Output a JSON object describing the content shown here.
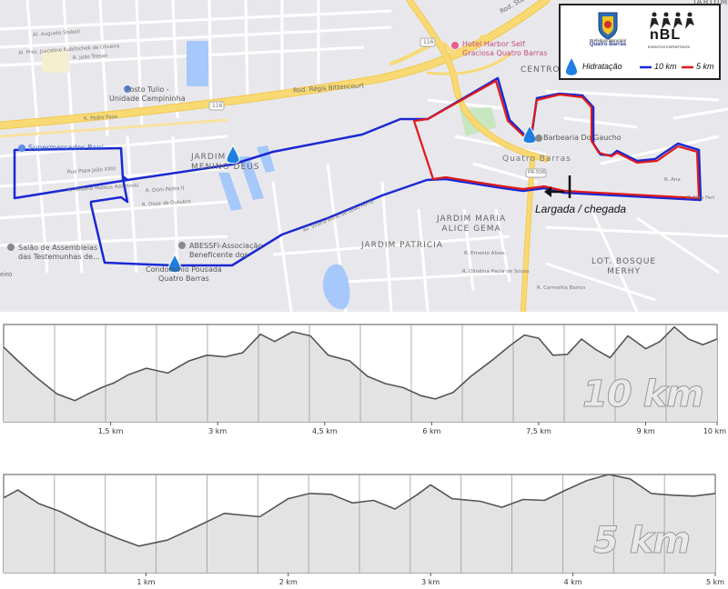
{
  "map": {
    "labels": {
      "centro": "CENTRO",
      "quatro_barras": "Quatro Barras",
      "jardim_menino_deus": "JARDIM\nMENINO DEUS",
      "jardim_maria_alice_gema": "JARDIM MARIA\nALICE GEMA",
      "jardim_patricia": "JARDIM PATRICIA",
      "lot_bosque_merhy": "LOT. BOSQUE\nMERHY",
      "jardim": "JARDIM",
      "supermercados_boni": "Supermercados Boni",
      "posto_tulio": "Posto Tulio -\nUnidade Campininha",
      "hotel_harbor": "Hotel Harbor Self\nGraciosa Quatro Barras",
      "barbearia": "Barbearia Do Gaucho",
      "abessfi": "ABESSFI-Associação\nBeneficente dos",
      "condominio": "Condomínio Pousada\nQuatro Barras",
      "salao": "Salão de Assembleias\ndas Testemunhas de...",
      "rod_regis": "Rod. Régis Bittencourt",
      "br116_a": "116",
      "br116_b": "116",
      "pr506": "PR-506",
      "eiro": "eiro",
      "rod_sta": "Rod. Sta",
      "r_augusto": "Al. Augusto Stabali",
      "r_pres_juscelino": "Al. Pres. Juscelino Kubitschek de Oliveira",
      "r_joao_tresan": "R. João Tresan",
      "r_pedro_paza": "R. Pedro Paza",
      "r_papa_joao": "Rua Papa João XXIII",
      "r_antonio_adamoski": "R. Antônio Mateus Adamoski",
      "r_dom_pedro": "R. Dom Pedro II",
      "r_doze_outubro": "R. Doze de Outubro",
      "r_vitoria_bond": "Av. Vitória Bond de Leão Horta",
      "r_olindina": "R. Olindina Paula de Souza",
      "r_carmelita": "R. Carmelita Barros",
      "r_ernesto": "R. Ernesto Alves",
      "r_ana": "R. Ana",
      "r_nita": "R. Nita Feri"
    },
    "start_label": "Largada / chegada",
    "colors": {
      "background": "#e8e8ec",
      "highway": "#f8d974",
      "route_10km": "#1a28d4",
      "route_5km": "#e01a1a",
      "water": "#a6c8fa",
      "park": "#c8e6c0",
      "hydration": "#1f7fe0"
    }
  },
  "legend": {
    "logo_text_line1": "Prefeitura Municipal",
    "logo_text_line2": "Quatro Barras",
    "brand": "nBL",
    "brand_sub": "EVENTOS ESPORTIVOS",
    "hydration_label": "Hidratação",
    "route_10km_label": "10 km",
    "route_5km_label": "5 km",
    "icons": {
      "crest": "municipal-crest-icon",
      "runners": "runners-icon",
      "hydration": "water-drop-icon"
    }
  },
  "chart_data": [
    {
      "type": "area",
      "watermark": "10 km",
      "x_unit": "km",
      "xlim": [
        0,
        10
      ],
      "ticks": [
        {
          "v": 1.5,
          "label": "1,5 km"
        },
        {
          "v": 3,
          "label": "3 km"
        },
        {
          "v": 4.5,
          "label": "4,5 km"
        },
        {
          "v": 6,
          "label": "6 km"
        },
        {
          "v": 7.5,
          "label": "7,5 km"
        },
        {
          "v": 9,
          "label": "9 km"
        },
        {
          "v": 10,
          "label": "10 km"
        }
      ],
      "grid": true,
      "x": [
        0,
        0.2,
        0.45,
        0.75,
        1.0,
        1.2,
        1.4,
        1.55,
        1.75,
        2.0,
        2.3,
        2.6,
        2.85,
        3.1,
        3.35,
        3.6,
        3.8,
        4.05,
        4.3,
        4.55,
        4.85,
        5.1,
        5.35,
        5.6,
        5.85,
        6.05,
        6.3,
        6.55,
        6.85,
        7.1,
        7.3,
        7.5,
        7.7,
        7.9,
        8.1,
        8.3,
        8.5,
        8.75,
        9.0,
        9.2,
        9.4,
        9.6,
        9.8,
        10.0
      ],
      "y": [
        0.72,
        0.55,
        0.35,
        0.14,
        0.06,
        0.15,
        0.23,
        0.28,
        0.38,
        0.46,
        0.4,
        0.55,
        0.62,
        0.6,
        0.65,
        0.88,
        0.79,
        0.91,
        0.86,
        0.62,
        0.55,
        0.36,
        0.27,
        0.22,
        0.12,
        0.08,
        0.16,
        0.36,
        0.56,
        0.74,
        0.87,
        0.83,
        0.62,
        0.63,
        0.82,
        0.69,
        0.59,
        0.86,
        0.7,
        0.79,
        0.97,
        0.82,
        0.75,
        0.82
      ]
    },
    {
      "type": "area",
      "watermark": "5 km",
      "x_unit": "km",
      "xlim": [
        0,
        5
      ],
      "ticks": [
        {
          "v": 1,
          "label": "1 km"
        },
        {
          "v": 2,
          "label": "2 km"
        },
        {
          "v": 3,
          "label": "3 km"
        },
        {
          "v": 4,
          "label": "4 km"
        },
        {
          "v": 5,
          "label": "5 km"
        }
      ],
      "grid": true,
      "x": [
        0,
        0.1,
        0.25,
        0.4,
        0.6,
        0.8,
        0.95,
        1.15,
        1.35,
        1.55,
        1.8,
        2.0,
        2.15,
        2.3,
        2.45,
        2.6,
        2.75,
        2.9,
        3.0,
        3.15,
        3.35,
        3.5,
        3.65,
        3.8,
        3.95,
        4.1,
        4.25,
        4.4,
        4.55,
        4.7,
        4.85,
        5.0
      ],
      "y": [
        0.73,
        0.82,
        0.66,
        0.57,
        0.4,
        0.26,
        0.17,
        0.24,
        0.39,
        0.55,
        0.51,
        0.72,
        0.78,
        0.77,
        0.67,
        0.7,
        0.6,
        0.76,
        0.88,
        0.72,
        0.69,
        0.62,
        0.71,
        0.7,
        0.82,
        0.93,
        1.0,
        0.95,
        0.78,
        0.76,
        0.75,
        0.78
      ]
    }
  ]
}
